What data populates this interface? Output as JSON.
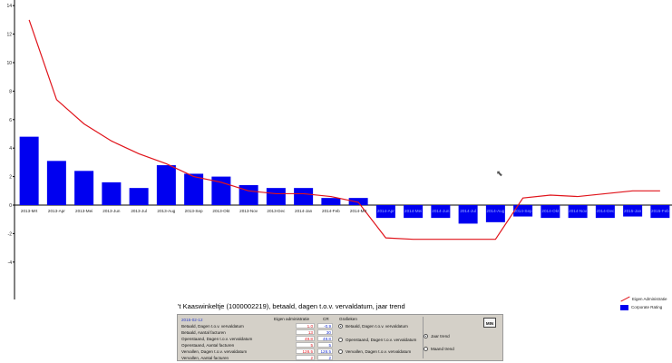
{
  "chart_data": {
    "type": "bar",
    "title": "'t Kaaswinkeltje (1000002219), betaald, dagen t.o.v. vervaldatum, jaar trend",
    "categories": [
      "2013-Mrt",
      "2013-Apr",
      "2013-Mei",
      "2013-Jun",
      "2013-Jul",
      "2013-Aug",
      "2013-Sep",
      "2013-Okt",
      "2013-Nov",
      "2013-Dec",
      "2014-Jan",
      "2014-Feb",
      "2014-Mrt",
      "2014-Apr",
      "2014-Mei",
      "2014-Jun",
      "2014-Jul",
      "2014-Aug",
      "2014-Sep",
      "2014-Okt",
      "2014-Nov",
      "2014-Dec",
      "2015-Jan",
      "2015-Feb"
    ],
    "series": [
      {
        "name": "Corporate Rating",
        "type": "bar",
        "color": "#0000f0",
        "values": [
          4.8,
          3.1,
          2.4,
          1.6,
          1.2,
          2.8,
          2.2,
          2.0,
          1.4,
          1.2,
          1.2,
          0.5,
          0.5,
          -0.9,
          -0.9,
          -0.9,
          -1.3,
          -1.2,
          -0.8,
          -0.9,
          -0.9,
          -0.9,
          -0.8,
          -0.9
        ]
      },
      {
        "name": "Eigen Administratie",
        "type": "line",
        "color": "#e0141b",
        "values": [
          13.0,
          7.4,
          5.7,
          4.5,
          3.6,
          2.9,
          2.0,
          1.6,
          1.0,
          0.8,
          0.8,
          0.6,
          0.2,
          -2.3,
          -2.4,
          -2.4,
          -2.4,
          -2.4,
          0.5,
          0.7,
          0.6,
          0.8,
          1.0,
          1.0
        ]
      }
    ],
    "ylim": [
      -6.5,
      14.5
    ],
    "yticks": [
      "14",
      "12",
      "10",
      "8",
      "6",
      "4",
      "2",
      "0",
      "-2",
      "-4"
    ],
    "grid": false,
    "legend": "bottom-right",
    "xlabel": "",
    "ylabel": ""
  },
  "legend": {
    "line_label": "Eigen Administratie",
    "bar_label": "Corporate Rating"
  },
  "panel": {
    "date": "2015-02-12",
    "col_eigen": "Eigen administratie",
    "col_cr": "CR",
    "col_grafieken": "Grafieken",
    "rows": [
      {
        "label": "Betaald, Dagen t.o.v. vervaldatum",
        "eigen": "1.0",
        "cr": "-0.9"
      },
      {
        "label": "Betaald, Aantal facturen",
        "eigen": "13",
        "cr": "30"
      },
      {
        "label": "Openstaand, Dagen t.o.v. vervaldatum",
        "eigen": "49.8",
        "cr": "49.8"
      },
      {
        "label": "Openstaand, Aantal facturen",
        "eigen": "5",
        "cr": "5"
      },
      {
        "label": "Vervallen, Dagen t.o.v. vervaldatum",
        "eigen": "128.5",
        "cr": "128.5"
      },
      {
        "label": "Vervallen, Aantal facturen",
        "eigen": "2",
        "cr": "2"
      }
    ],
    "grafieken": [
      {
        "label": "Betaald, Dagen t.o.v. vervaldatum",
        "selected": true
      },
      {
        "label": "Openstaand, Dagen t.o.v. vervaldatum",
        "selected": false
      },
      {
        "label": "Vervallen, Dagen t.o.v. vervaldatum",
        "selected": false
      }
    ],
    "trend": [
      {
        "label": "Jaar trend",
        "selected": true
      },
      {
        "label": "Maand trend",
        "selected": false
      }
    ],
    "min_button": "MIN"
  }
}
